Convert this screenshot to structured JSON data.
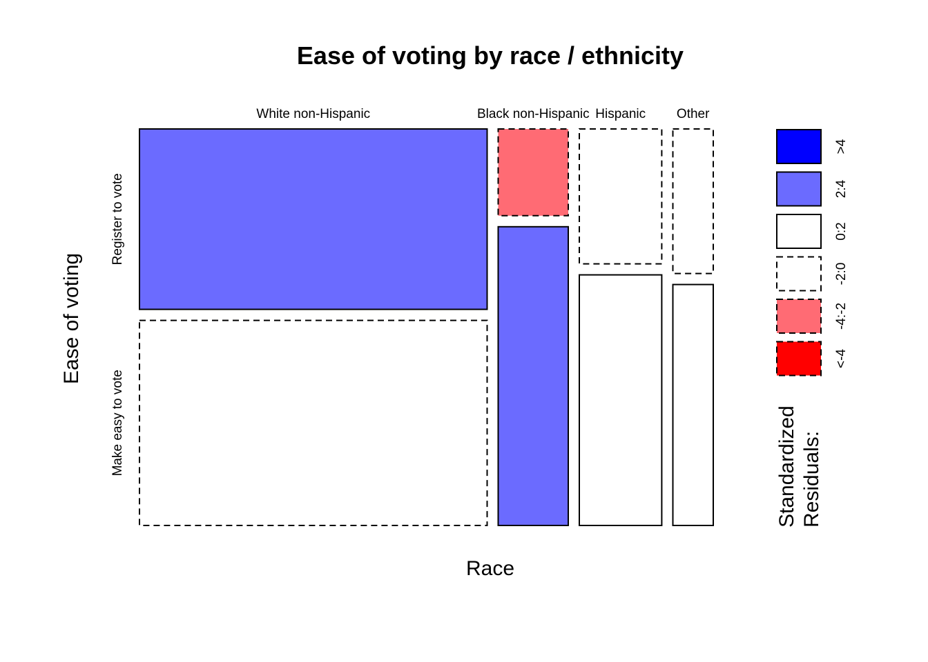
{
  "chart_data": {
    "type": "mosaic",
    "title": "Ease of voting by race / ethnicity",
    "xlabel": "Race",
    "ylabel": "Ease of voting",
    "x_categories": [
      "White non-Hispanic",
      "Black non-Hispanic",
      "Hispanic",
      "Other"
    ],
    "y_categories": [
      "Register to vote",
      "Make easy to vote"
    ],
    "column_proportions": [
      0.645,
      0.13,
      0.153,
      0.075
    ],
    "cells": [
      {
        "race": "White non-Hispanic",
        "answer": "Register to vote",
        "share": 0.468,
        "residual_band": "2:4"
      },
      {
        "race": "White non-Hispanic",
        "answer": "Make easy to vote",
        "share": 0.532,
        "residual_band": "-2:0"
      },
      {
        "race": "Black non-Hispanic",
        "answer": "Register to vote",
        "share": 0.225,
        "residual_band": "-4:-2"
      },
      {
        "race": "Black non-Hispanic",
        "answer": "Make easy to vote",
        "share": 0.775,
        "residual_band": "2:4"
      },
      {
        "race": "Hispanic",
        "answer": "Register to vote",
        "share": 0.35,
        "residual_band": "-2:0"
      },
      {
        "race": "Hispanic",
        "answer": "Make easy to vote",
        "share": 0.65,
        "residual_band": "0:2"
      },
      {
        "race": "Other",
        "answer": "Register to vote",
        "share": 0.375,
        "residual_band": "-2:0"
      },
      {
        "race": "Other",
        "answer": "Make easy to vote",
        "share": 0.625,
        "residual_band": "0:2"
      }
    ],
    "legend": {
      "title_lines": [
        "Standardized",
        "Residuals:"
      ],
      "bands": [
        {
          "label": ">4",
          "color": "#0000ff",
          "dashed": false
        },
        {
          "label": "2:4",
          "color": "#6b6bff",
          "dashed": false
        },
        {
          "label": "0:2",
          "color": "#ffffff",
          "dashed": false
        },
        {
          "label": "-2:0",
          "color": "#ffffff",
          "dashed": true
        },
        {
          "label": "-4:-2",
          "color": "#ff6b74",
          "dashed": true
        },
        {
          "label": "<-4",
          "color": "#ff0000",
          "dashed": true
        }
      ]
    }
  }
}
